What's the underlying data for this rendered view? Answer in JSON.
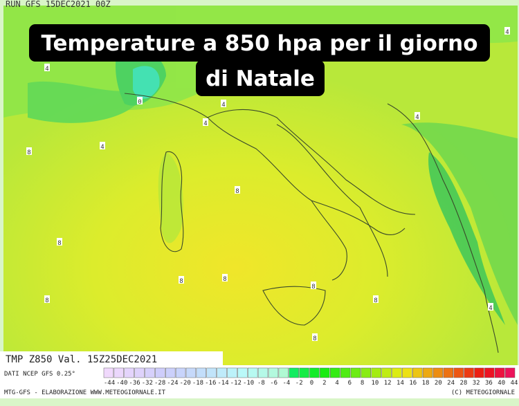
{
  "header": {
    "run": "RUN GFS 15DEC2021 00Z"
  },
  "caption": {
    "lines": [
      "Temperature a 850 hpa per il giorno",
      "di Natale"
    ]
  },
  "map": {
    "contour_labels": [
      "4",
      "0",
      "4",
      "4",
      "4",
      "8",
      "4",
      "4",
      "8",
      "8",
      "8",
      "8",
      "8",
      "8",
      "8",
      "8",
      "4"
    ]
  },
  "footer": {
    "field": "TMP Z850 Val. 15Z25DEC2021",
    "source": "DATI NCEP GFS 0.25°",
    "credit": "MTG-GFS - ELABORAZIONE WWW.METEOGIORNALE.IT",
    "copyright": "(C) METEOGIORNALE"
  },
  "legend": {
    "labels": [
      -44,
      -40,
      -36,
      -32,
      -28,
      -24,
      -20,
      -18,
      -16,
      -14,
      -12,
      -10,
      -8,
      -6,
      -4,
      -2,
      0,
      2,
      4,
      6,
      8,
      10,
      12,
      14,
      16,
      18,
      20,
      24,
      28,
      32,
      36,
      40,
      44
    ]
  }
}
